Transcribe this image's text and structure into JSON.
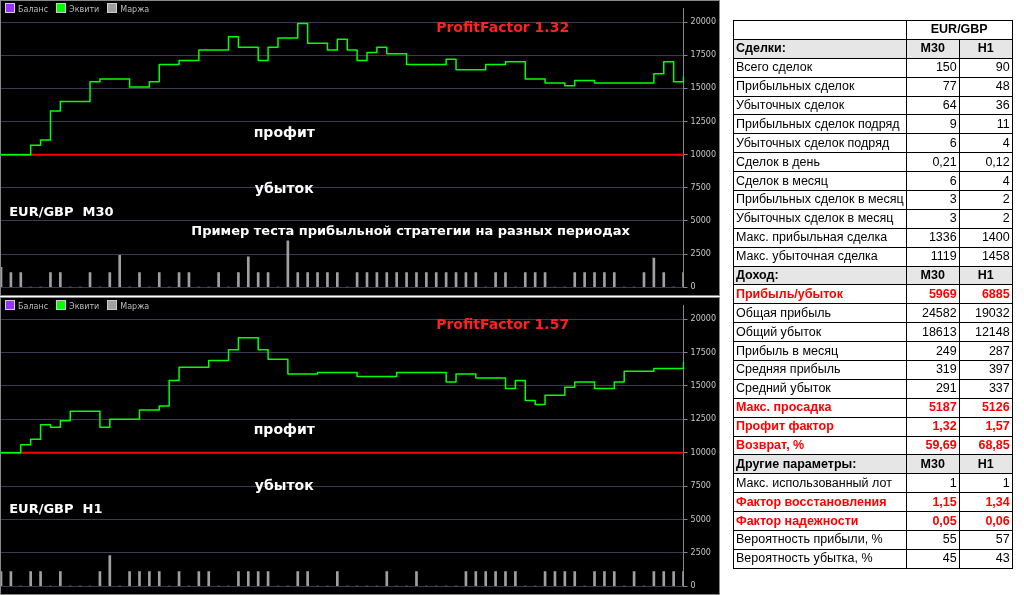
{
  "chart_data": [
    {
      "type": "line",
      "categories": [
        null,
        null,
        null,
        null,
        null,
        null,
        null,
        null,
        null,
        null,
        null,
        null,
        null,
        null,
        null,
        null,
        null,
        null,
        null,
        null,
        null,
        null,
        null,
        null,
        null,
        null,
        null,
        null,
        null,
        null,
        null,
        null,
        null,
        null,
        null,
        null,
        null,
        null,
        null,
        null,
        null,
        null,
        null,
        null,
        null,
        null,
        null,
        null,
        null,
        null,
        null,
        null,
        null,
        null,
        null,
        null,
        null,
        null,
        null,
        null,
        null,
        null,
        null,
        null,
        null,
        null,
        null,
        null,
        null,
        null
      ],
      "series": [
        {
          "name": "Баланс",
          "type": "step",
          "color": "#9933ff",
          "values": [
            null,
            null,
            null,
            null,
            null,
            null,
            null,
            null,
            null,
            null,
            null,
            null,
            null,
            null,
            null,
            null,
            null,
            null,
            null,
            null,
            null,
            null,
            null,
            null,
            null,
            null,
            null,
            null,
            null,
            null,
            null,
            null,
            null,
            null,
            null,
            null,
            null,
            null,
            null,
            null,
            null,
            null,
            null,
            null,
            null,
            null,
            null,
            null,
            null,
            null,
            null,
            null,
            null,
            null,
            null,
            null,
            null,
            null,
            null,
            null,
            null,
            null,
            null,
            null,
            null,
            null,
            null,
            null,
            null,
            null
          ]
        },
        {
          "name": "Эквити",
          "type": "step",
          "color": "#00ff00",
          "values": [
            10000,
            10000,
            10000,
            10700,
            11100,
            13300,
            14000,
            14000,
            14000,
            15500,
            15700,
            15700,
            15700,
            15100,
            15100,
            15500,
            16800,
            16800,
            17100,
            17100,
            17900,
            17900,
            17900,
            18900,
            18100,
            18100,
            17100,
            18100,
            18800,
            18800,
            19900,
            18400,
            18400,
            17900,
            18700,
            17900,
            17100,
            17700,
            18100,
            17600,
            17600,
            16800,
            16800,
            16800,
            16800,
            17200,
            16400,
            16400,
            16400,
            16800,
            16800,
            17000,
            17000,
            15700,
            15700,
            15400,
            15400,
            15200,
            15600,
            15600,
            15400,
            15400,
            15400,
            15400,
            15400,
            15400,
            16100,
            17000,
            15500,
            15900
          ]
        },
        {
          "name": "Маржа",
          "type": "bar",
          "color": "#a0a0a0",
          "values": [
            1500,
            1100,
            1100,
            0,
            0,
            1100,
            1100,
            0,
            0,
            1100,
            0,
            1100,
            2400,
            0,
            1100,
            0,
            1100,
            0,
            1100,
            1100,
            0,
            0,
            1100,
            0,
            1100,
            2300,
            1100,
            1100,
            0,
            3500,
            1100,
            1100,
            1100,
            1100,
            1100,
            0,
            1100,
            1100,
            1100,
            1100,
            1100,
            1100,
            1100,
            1100,
            1100,
            1100,
            1100,
            1100,
            1100,
            0,
            1100,
            1100,
            0,
            1100,
            1100,
            1100,
            0,
            0,
            1100,
            1100,
            1100,
            1100,
            1100,
            0,
            0,
            1100,
            2200,
            1100,
            0,
            1100
          ]
        }
      ],
      "ylim": [
        0,
        21000
      ],
      "yticks": [
        0,
        2500,
        5000,
        7500,
        10000,
        12500,
        15000,
        17500,
        20000
      ],
      "grid": "y",
      "legend": "top left",
      "tick_labels": "y",
      "ref_lines": [
        {
          "axis": "y",
          "value": 10000,
          "color": "#ff0000"
        }
      ],
      "annotations": [
        "ProfitFactor 1.32",
        "профит",
        "убыток",
        "EUR/GBP  M30",
        "Пример теста прибыльной стратегии на разных периодах"
      ]
    },
    {
      "type": "line",
      "categories": [
        null,
        null,
        null,
        null,
        null,
        null,
        null,
        null,
        null,
        null,
        null,
        null,
        null,
        null,
        null,
        null,
        null,
        null,
        null,
        null,
        null,
        null,
        null,
        null,
        null,
        null,
        null,
        null,
        null,
        null,
        null,
        null,
        null,
        null,
        null,
        null,
        null,
        null,
        null,
        null,
        null,
        null,
        null,
        null,
        null,
        null,
        null,
        null,
        null,
        null,
        null,
        null,
        null,
        null,
        null,
        null,
        null,
        null,
        null,
        null,
        null,
        null,
        null,
        null,
        null,
        null,
        null,
        null,
        null,
        null
      ],
      "series": [
        {
          "name": "Баланс",
          "type": "step",
          "color": "#9933ff",
          "values": [
            null,
            null,
            null,
            null,
            null,
            null,
            null,
            null,
            null,
            null,
            null,
            null,
            null,
            null,
            null,
            null,
            null,
            null,
            null,
            null,
            null,
            null,
            null,
            null,
            null,
            null,
            null,
            null,
            null,
            null,
            null,
            null,
            null,
            null,
            null,
            null,
            null,
            null,
            null,
            null,
            null,
            null,
            null,
            null,
            null,
            null,
            null,
            null,
            null,
            null,
            null,
            null,
            null,
            null,
            null,
            null,
            null,
            null,
            null,
            null,
            null,
            null,
            null,
            null,
            null,
            null,
            null,
            null,
            null,
            null
          ]
        },
        {
          "name": "Эквити",
          "type": "step",
          "color": "#00ff00",
          "values": [
            10000,
            10000,
            10600,
            11000,
            12100,
            11900,
            12400,
            13100,
            13100,
            13100,
            11900,
            12500,
            12500,
            12500,
            13200,
            13200,
            13500,
            15400,
            16400,
            16400,
            16400,
            16900,
            16900,
            17700,
            18600,
            18600,
            17700,
            17000,
            17000,
            15900,
            15900,
            15900,
            16000,
            16000,
            16000,
            16000,
            15700,
            15700,
            15700,
            15700,
            16000,
            16000,
            16000,
            16000,
            16000,
            15300,
            15900,
            15900,
            15600,
            15600,
            15600,
            14800,
            15400,
            13900,
            13600,
            14300,
            14300,
            14900,
            15300,
            15300,
            14800,
            14800,
            15300,
            16100,
            16100,
            16100,
            16300,
            16300,
            16300,
            16800
          ]
        },
        {
          "name": "Маржа",
          "type": "bar",
          "color": "#a0a0a0",
          "values": [
            1100,
            1100,
            0,
            1100,
            1100,
            0,
            1100,
            0,
            0,
            0,
            1100,
            2300,
            0,
            1100,
            1100,
            1100,
            1100,
            0,
            1100,
            0,
            1100,
            1100,
            0,
            0,
            1100,
            1100,
            1100,
            1100,
            0,
            0,
            1100,
            1100,
            0,
            0,
            1100,
            0,
            0,
            0,
            0,
            1100,
            0,
            0,
            1100,
            0,
            0,
            0,
            0,
            1100,
            1100,
            1100,
            1100,
            1100,
            1100,
            0,
            0,
            1100,
            1100,
            1100,
            1100,
            0,
            1100,
            1100,
            1100,
            0,
            1100,
            0,
            1100,
            1100,
            1100,
            1100
          ]
        }
      ],
      "ylim": [
        0,
        21000
      ],
      "yticks": [
        0,
        2500,
        5000,
        7500,
        10000,
        12500,
        15000,
        17500,
        20000
      ],
      "grid": "y",
      "legend": "top left",
      "tick_labels": "y",
      "ref_lines": [
        {
          "axis": "y",
          "value": 10000,
          "color": "#ff0000"
        }
      ],
      "annotations": [
        "ProfitFactor 1.57",
        "профит",
        "убыток",
        "EUR/GBP  H1"
      ]
    },
    {
      "type": "other",
      "title": "EUR/GBP",
      "data_labels": true,
      "annotations": [
        "Сделки:",
        "Доход:",
        "Другие параметры:"
      ],
      "categories": [
        null,
        "Всего сделок",
        "Прибыльных сделок",
        "Убыточных сделок",
        "Прибыльных сделок подряд",
        "Убыточных сделок подряд",
        "Сделок в день",
        "Сделок в месяц",
        "Прибыльных сделок в месяц",
        "Убыточных сделок в месяц",
        "Макс. прибыльная сделка",
        "Макс. убыточная сделка",
        null,
        "Прибыль/убыток",
        "Общая прибыль",
        "Общий убыток",
        "Прибыль в месяц",
        "Средняя прибыль",
        "Средний убыток",
        "Макс. просадка",
        "Профит фактор",
        "Возврат, %",
        null,
        "Макс. использованный лот",
        "Фактор восстановления",
        "Фактор надежности",
        "Вероятность прибыли, %",
        "Вероятность убытка, %"
      ],
      "colors": [
        "#000000",
        "#000000",
        "#000000",
        "#000000",
        "#000000",
        "#000000",
        "#000000",
        "#000000",
        "#000000",
        "#000000",
        "#000000",
        "#000000",
        "#000000",
        "#ff0000",
        "#000000",
        "#000000",
        "#000000",
        "#000000",
        "#000000",
        "#ff0000",
        "#ff0000",
        "#ff0000",
        "#000000",
        "#000000",
        "#ff0000",
        "#ff0000",
        "#000000",
        "#000000"
      ],
      "series": [
        {
          "name": "M30",
          "values": [
            null,
            150,
            77,
            64,
            9,
            6,
            0.21,
            6,
            3,
            3,
            1336,
            1119,
            null,
            5969,
            24582,
            18613,
            249,
            319,
            291,
            5187,
            1.32,
            59.69,
            null,
            1,
            1.15,
            0.05,
            55,
            45
          ],
          "value_labels": [
            null,
            "150",
            "77",
            "64",
            "9",
            "6",
            "0,21",
            "6",
            "3",
            "3",
            "1336",
            "1119",
            null,
            "5969",
            "24582",
            "18613",
            "249",
            "319",
            "291",
            "5187",
            "1,32",
            "59,69",
            null,
            "1",
            "1,15",
            "0,05",
            "55",
            "45"
          ]
        },
        {
          "name": "H1",
          "values": [
            null,
            90,
            48,
            36,
            11,
            4,
            0.12,
            4,
            2,
            2,
            1400,
            1458,
            null,
            6885,
            19032,
            12148,
            287,
            397,
            337,
            5126,
            1.57,
            68.85,
            null,
            1,
            1.34,
            0.06,
            57,
            43
          ],
          "value_labels": [
            null,
            "90",
            "48",
            "36",
            "11",
            "4",
            "0,12",
            "4",
            "2",
            "2",
            "1400",
            "1458",
            null,
            "6885",
            "19032",
            "12148",
            "287",
            "397",
            "337",
            "5126",
            "1,57",
            "68,85",
            null,
            "1",
            "1,34",
            "0,06",
            "57",
            "43"
          ]
        }
      ]
    }
  ]
}
